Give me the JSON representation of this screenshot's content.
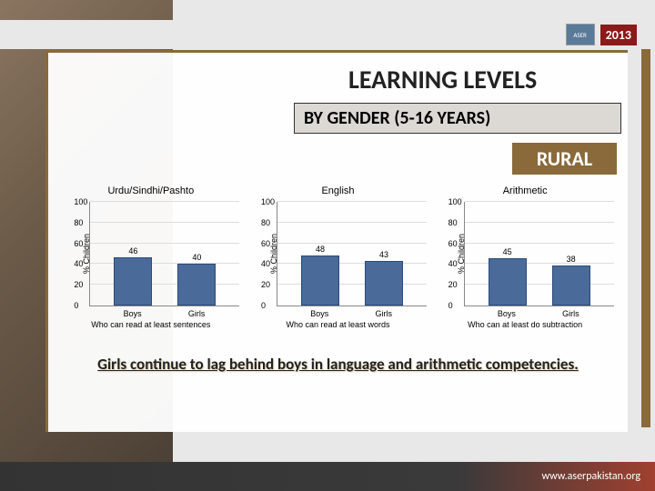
{
  "header": {
    "year": "2013",
    "logo_text": "ASER"
  },
  "title": "LEARNING LEVELS",
  "subtitle": "BY GENDER (5-16 YEARS)",
  "badge": "RURAL",
  "ylabel": "% Children",
  "ylim": [
    0,
    100
  ],
  "ytick_step": 20,
  "bar_fill": "#4a6a9a",
  "bar_border": "#2a4a7a",
  "grid_color": "#dddddd",
  "axis_color": "#888888",
  "charts": [
    {
      "title": "Urdu/Sindhi/Pashto",
      "categories": [
        "Boys",
        "Girls"
      ],
      "values": [
        46,
        40
      ],
      "subtitle": "Who can read at least sentences"
    },
    {
      "title": "English",
      "categories": [
        "Boys",
        "Girls"
      ],
      "values": [
        48,
        43
      ],
      "subtitle": "Who can read at least words"
    },
    {
      "title": "Arithmetic",
      "categories": [
        "Boys",
        "Girls"
      ],
      "values": [
        45,
        38
      ],
      "subtitle": "Who can at least do subtraction"
    }
  ],
  "conclusion": "Girls continue to lag behind boys in language and arithmetic competencies.",
  "footer_url": "www.aserpakistan.org",
  "label_fontsize": 9,
  "title_fontsize": 11
}
